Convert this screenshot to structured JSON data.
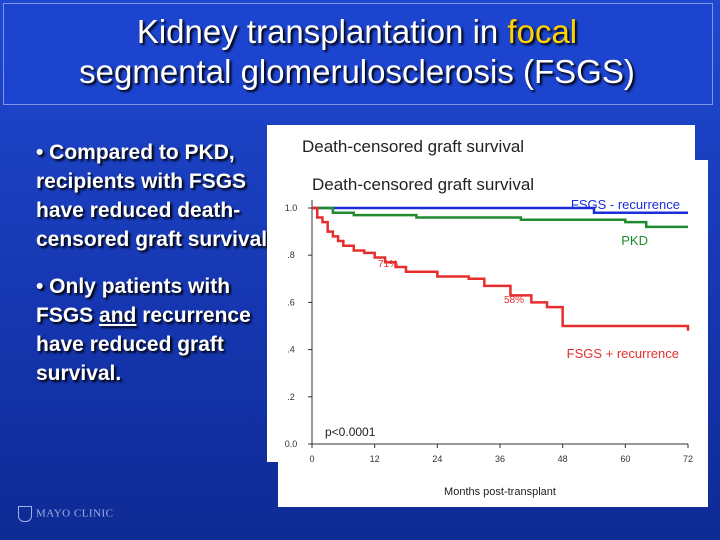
{
  "title": {
    "part1": "Kidney transplantation in ",
    "highlight": "focal",
    "part2": "segmental glomerulosclerosis (FSGS)"
  },
  "bullets": {
    "b1": "• Compared to PKD, recipients with FSGS have reduced death-censored graft survival.",
    "b2_pre": "• Only patients with FSGS ",
    "b2_underline": "and",
    "b2_post": " recurrence have reduced graft survival."
  },
  "colors": {
    "fsgs_minus": "#1a2fd8",
    "pkd": "#1f8a2e",
    "fsgs_plus": "#e62e2e",
    "title_highlight": "#ffd200"
  },
  "chart_data": {
    "type": "line",
    "title_back": "Death-censored graft survival",
    "title": "Death-censored graft survival",
    "xlabel": "Months post-transplant",
    "ylabel": "",
    "x_ticks": [
      "0",
      "12",
      "24",
      "36",
      "48",
      "60",
      "72"
    ],
    "y_ticks": [
      "0.0",
      ".2",
      ".4",
      ".6",
      ".8",
      "1.0"
    ],
    "xlim": [
      0,
      72
    ],
    "ylim": [
      0,
      1.0
    ],
    "series": [
      {
        "name": "FSGS - recurrence",
        "color": "#1a2fd8",
        "x": [
          0,
          3,
          6,
          9,
          12,
          20,
          30,
          45,
          54,
          72
        ],
        "y": [
          1.0,
          1.0,
          1.0,
          1.0,
          1.0,
          1.0,
          1.0,
          1.0,
          0.98,
          0.98
        ]
      },
      {
        "name": "PKD",
        "color": "#1f8a2e",
        "x": [
          0,
          4,
          8,
          20,
          40,
          52,
          60,
          64,
          72
        ],
        "y": [
          1.0,
          0.98,
          0.97,
          0.96,
          0.95,
          0.95,
          0.94,
          0.92,
          0.92
        ]
      },
      {
        "name": "FSGS + recurrence",
        "color": "#e62e2e",
        "x": [
          0,
          1,
          2,
          3,
          4,
          5,
          6,
          8,
          10,
          12,
          14,
          16,
          18,
          24,
          30,
          33,
          38,
          42,
          45,
          48,
          60,
          72
        ],
        "y": [
          1.0,
          0.96,
          0.94,
          0.9,
          0.88,
          0.86,
          0.84,
          0.82,
          0.81,
          0.79,
          0.77,
          0.75,
          0.73,
          0.71,
          0.7,
          0.67,
          0.63,
          0.6,
          0.58,
          0.5,
          0.5,
          0.48
        ]
      }
    ],
    "annotations": [
      "71%",
      "58%",
      "p<0.0001"
    ],
    "grid": false,
    "legend": "inline labels"
  }
}
